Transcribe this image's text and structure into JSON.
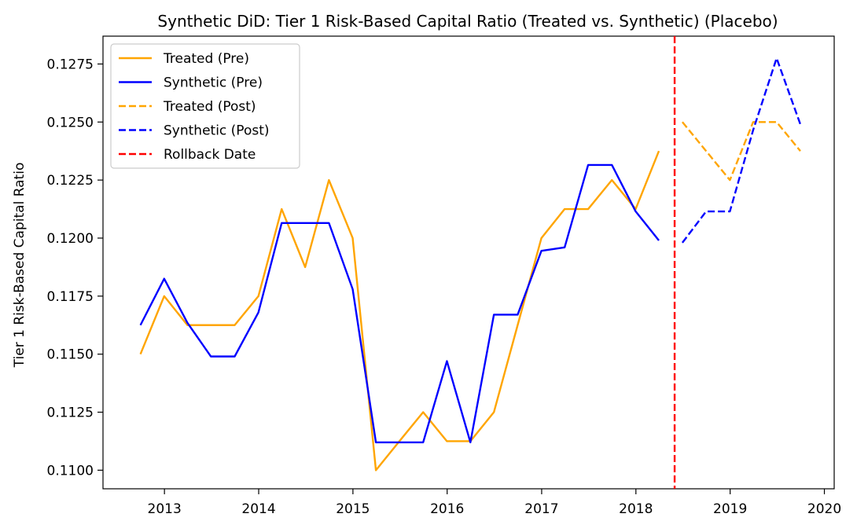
{
  "chart_data": {
    "type": "line",
    "title": "Synthetic DiD: Tier 1 Risk-Based Capital Ratio (Treated vs. Synthetic) (Placebo)",
    "xlabel": "",
    "ylabel": "Tier 1 Risk-Based Capital Ratio",
    "xlim": [
      "2012-05-08",
      "2020-02-08"
    ],
    "ylim": [
      0.1092,
      0.1287
    ],
    "x_ticks": [
      "2013",
      "2014",
      "2015",
      "2016",
      "2017",
      "2018",
      "2019",
      "2020"
    ],
    "y_ticks": [
      "0.1100",
      "0.1125",
      "0.1150",
      "0.1175",
      "0.1200",
      "0.1225",
      "0.1250",
      "0.1275"
    ],
    "grid": false,
    "legend_position": "top-left",
    "series": [
      {
        "name": "Treated (Pre)",
        "color": "#ffa500",
        "style": "solid",
        "x": [
          "2012-09-30",
          "2012-12-31",
          "2013-03-31",
          "2013-06-30",
          "2013-09-30",
          "2013-12-31",
          "2014-03-31",
          "2014-06-30",
          "2014-09-30",
          "2014-12-31",
          "2015-03-31",
          "2015-06-30",
          "2015-09-30",
          "2015-12-31",
          "2016-03-31",
          "2016-06-30",
          "2016-09-30",
          "2016-12-31",
          "2017-03-31",
          "2017-06-30",
          "2017-09-30",
          "2017-12-31",
          "2018-03-31"
        ],
        "values": [
          0.115,
          0.1175,
          0.11625,
          0.11625,
          0.11625,
          0.1175,
          0.12125,
          0.11875,
          0.1225,
          0.12,
          0.11,
          0.11125,
          0.1125,
          0.11125,
          0.11125,
          0.1125,
          0.11625,
          0.12,
          0.12125,
          0.12125,
          0.1225,
          0.12125,
          0.12375
        ]
      },
      {
        "name": "Synthetic (Pre)",
        "color": "#0000ff",
        "style": "solid",
        "x": [
          "2012-09-30",
          "2012-12-31",
          "2013-03-31",
          "2013-06-30",
          "2013-09-30",
          "2013-12-31",
          "2014-03-31",
          "2014-06-30",
          "2014-09-30",
          "2014-12-31",
          "2015-03-31",
          "2015-06-30",
          "2015-09-30",
          "2015-12-31",
          "2016-03-31",
          "2016-06-30",
          "2016-09-30",
          "2016-12-31",
          "2017-03-31",
          "2017-06-30",
          "2017-09-30",
          "2017-12-31",
          "2018-03-31"
        ],
        "values": [
          0.11625,
          0.11825,
          0.11635,
          0.1149,
          0.1149,
          0.1168,
          0.12065,
          0.12065,
          0.12065,
          0.1178,
          0.1112,
          0.1112,
          0.1112,
          0.1147,
          0.1112,
          0.1167,
          0.1167,
          0.11945,
          0.1196,
          0.12315,
          0.12315,
          0.12115,
          0.1199
        ]
      },
      {
        "name": "Treated (Post)",
        "color": "#ffa500",
        "style": "dashed",
        "x": [
          "2018-06-30",
          "2018-09-30",
          "2018-12-31",
          "2019-03-31",
          "2019-06-30",
          "2019-09-30"
        ],
        "values": [
          0.125,
          0.12375,
          0.1225,
          0.125,
          0.125,
          0.12375
        ]
      },
      {
        "name": "Synthetic (Post)",
        "color": "#0000ff",
        "style": "dashed",
        "x": [
          "2018-06-30",
          "2018-09-30",
          "2018-12-31",
          "2019-03-31",
          "2019-06-30",
          "2019-09-30"
        ],
        "values": [
          0.1198,
          0.12115,
          0.12115,
          0.12465,
          0.12775,
          0.1249
        ]
      }
    ],
    "vline": {
      "name": "Rollback Date",
      "date": "2018-05-31",
      "color": "#ff0000",
      "style": "dashed"
    },
    "legend": [
      "Treated (Pre)",
      "Synthetic (Pre)",
      "Treated (Post)",
      "Synthetic (Post)",
      "Rollback Date"
    ]
  }
}
